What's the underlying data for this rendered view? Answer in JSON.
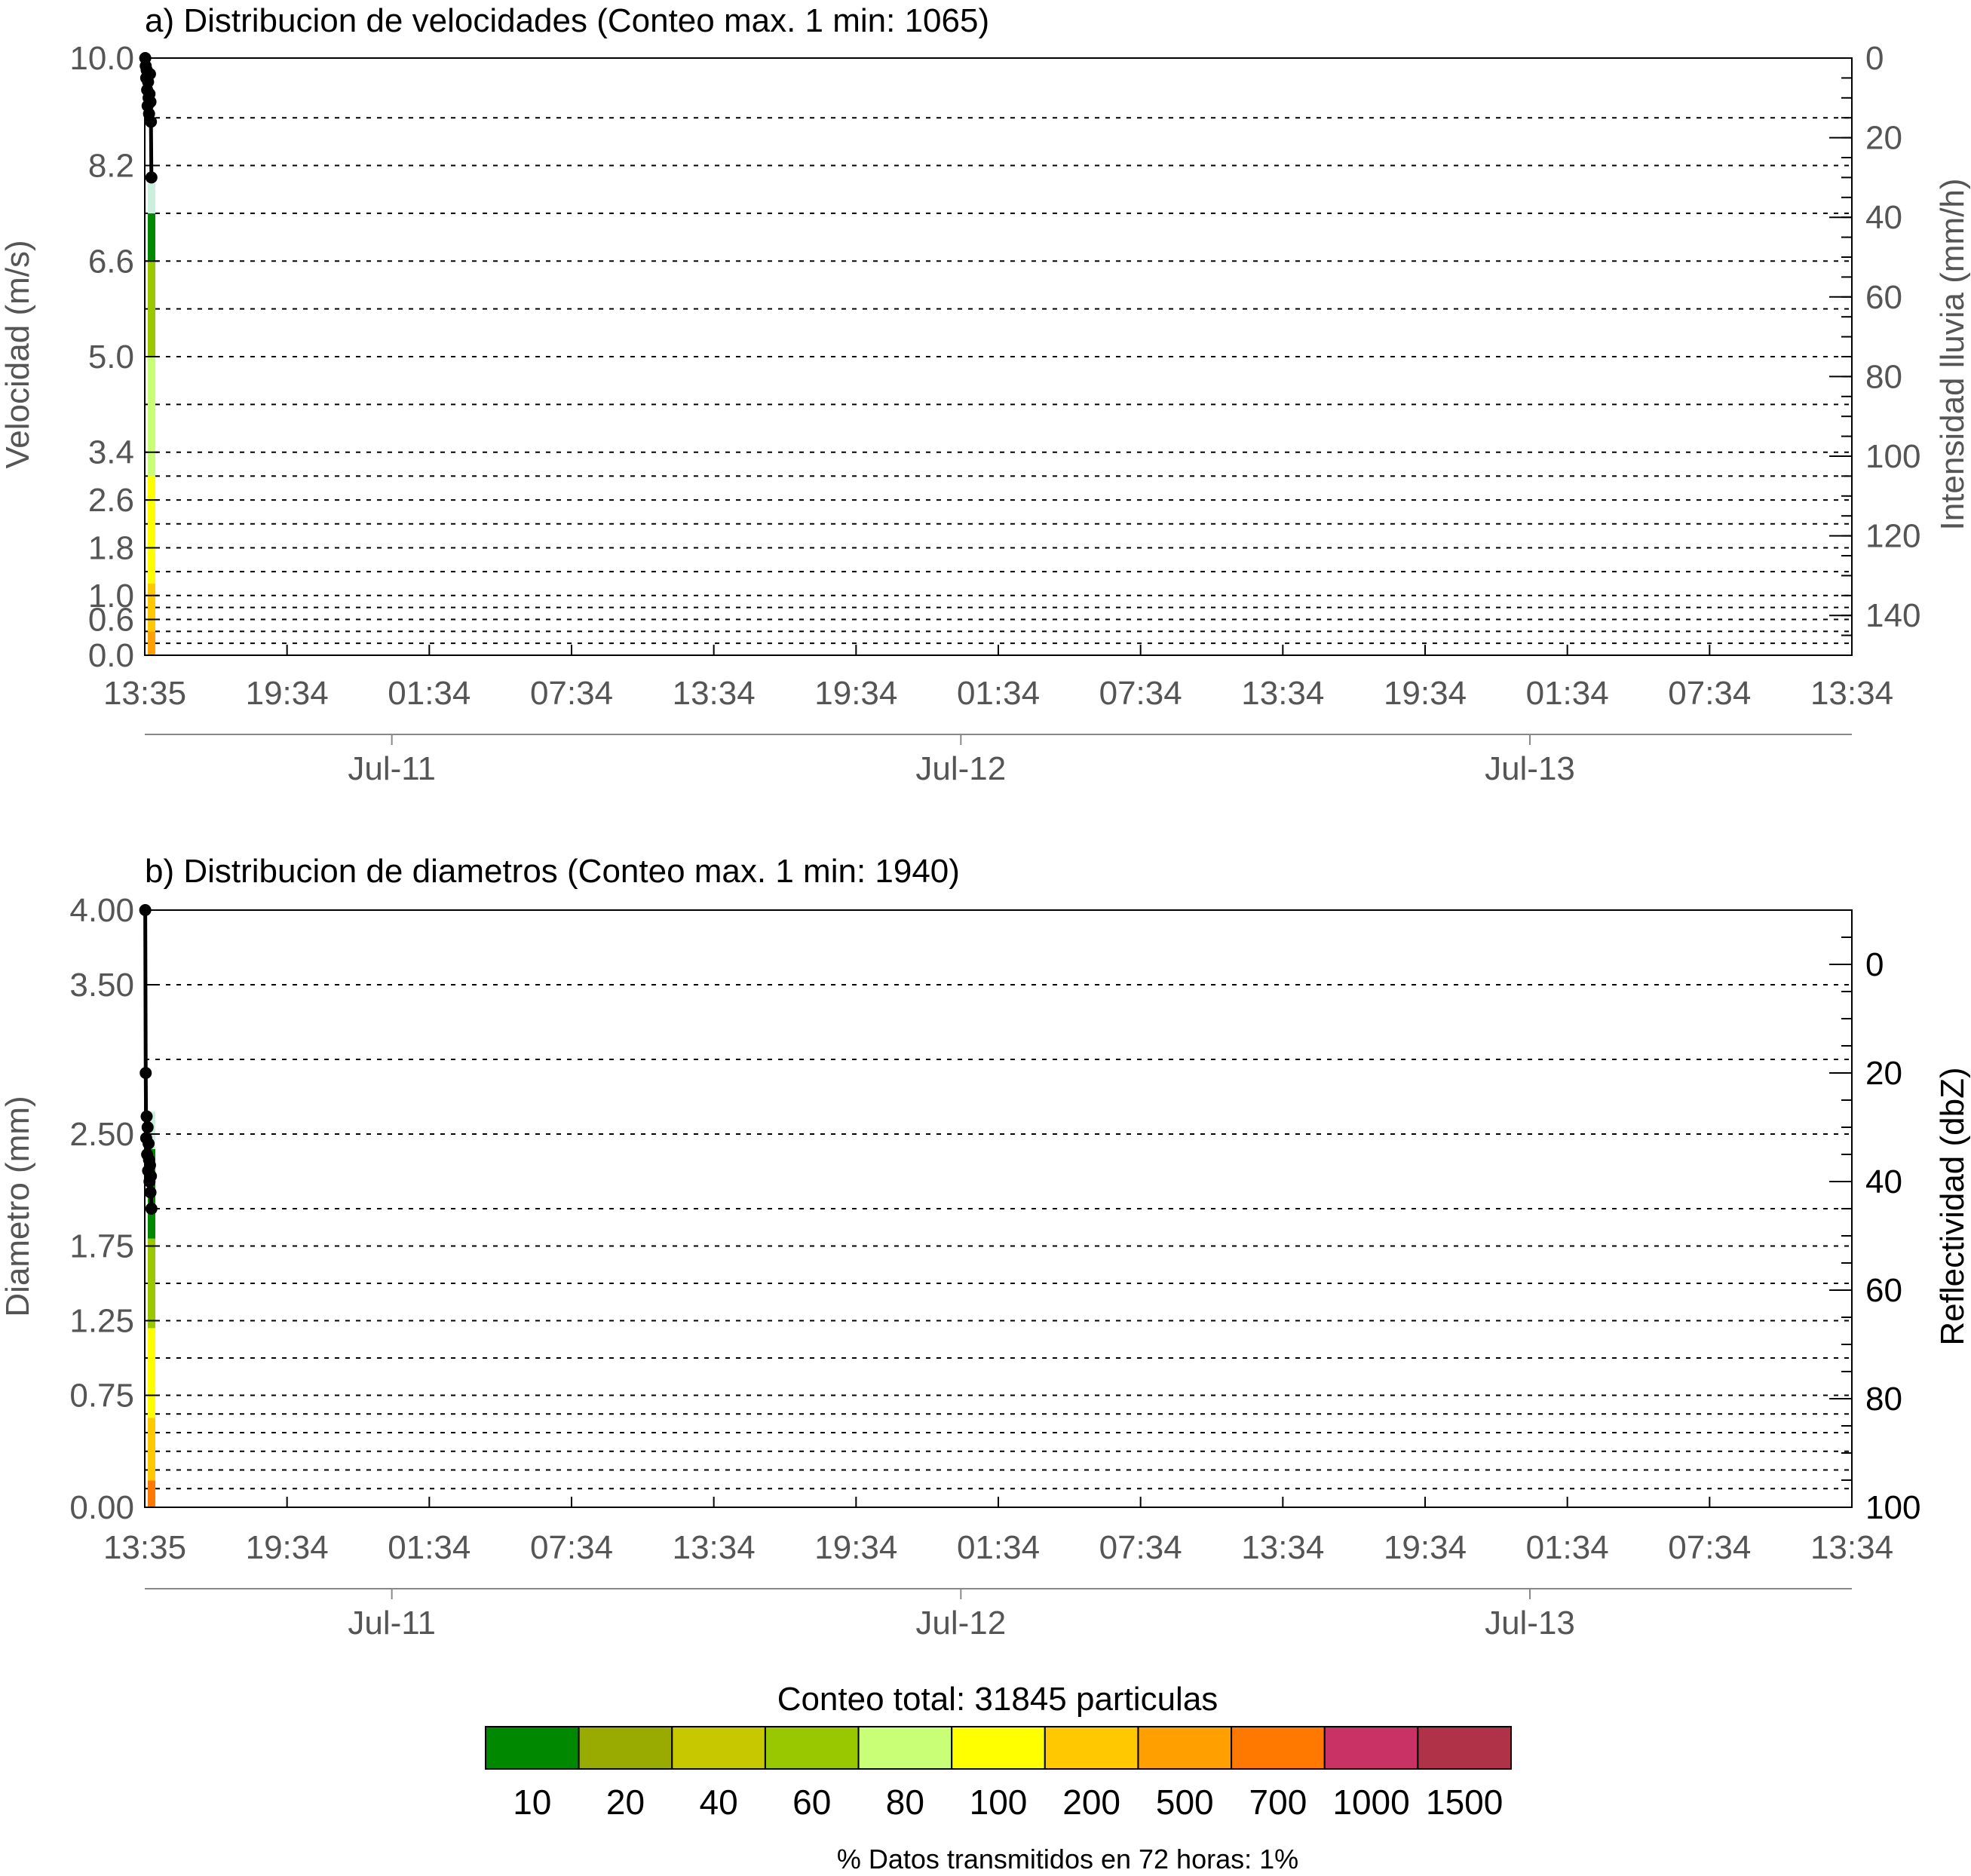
{
  "chart_data": [
    {
      "type": "heatmap",
      "title": "a) Distribucion de velocidades (Conteo max. 1 min: 1065)",
      "ylabel": "Velocidad (m/s)",
      "y2label": "Intensidad lluvia (mm/h)",
      "ylim": [
        0,
        10
      ],
      "y_ticks": [
        "10.0",
        "8.2",
        "6.6",
        "5.0",
        "3.4",
        "2.6",
        "1.8",
        "1.0",
        "0.6",
        "0.0"
      ],
      "y_grid_values": [
        0.0,
        0.2,
        0.4,
        0.6,
        0.8,
        1.0,
        1.4,
        1.8,
        2.2,
        2.6,
        3.0,
        3.4,
        4.2,
        5.0,
        5.8,
        6.6,
        7.4,
        8.2,
        9.0,
        10.0
      ],
      "y2_ticks": [
        "0",
        "20",
        "40",
        "60",
        "80",
        "100",
        "120",
        "140"
      ],
      "y2_lim": [
        0,
        150
      ],
      "x_ticks": [
        "13:35",
        "19:34",
        "01:34",
        "07:34",
        "13:34",
        "19:34",
        "01:34",
        "07:34",
        "13:34",
        "19:34",
        "01:34",
        "07:34",
        "13:34"
      ],
      "x_day_labels": [
        "Jul-11",
        "Jul-12",
        "Jul-13"
      ],
      "x_range_hours": [
        0,
        72
      ],
      "intensity_series": {
        "x_hours": [
          0.02,
          0.04,
          0.06,
          0.08,
          0.1,
          0.12,
          0.14,
          0.16,
          0.18,
          0.2,
          0.22,
          0.24,
          0.26,
          0.28
        ],
        "mm_h": [
          0,
          2,
          5,
          3,
          8,
          12,
          6,
          10,
          14,
          9,
          4,
          11,
          16,
          30
        ]
      }
    },
    {
      "type": "heatmap",
      "title": "b) Distribucion de diametros (Conteo max. 1 min: 1940)",
      "ylabel": "Diametro (mm)",
      "y2label": "Reflectividad (dbZ)",
      "ylim": [
        0,
        4
      ],
      "y_ticks": [
        "4.00",
        "3.50",
        "2.50",
        "1.75",
        "1.25",
        "0.75",
        "0.00"
      ],
      "y_grid_values": [
        0.0,
        0.125,
        0.25,
        0.375,
        0.5,
        0.625,
        0.75,
        1.0,
        1.25,
        1.5,
        1.75,
        2.0,
        2.5,
        3.0,
        3.5,
        4.0
      ],
      "y2_ticks": [
        "0",
        "20",
        "40",
        "60",
        "80",
        "100"
      ],
      "y2_lim": [
        -10,
        100
      ],
      "x_ticks": [
        "13:35",
        "19:34",
        "01:34",
        "07:34",
        "13:34",
        "19:34",
        "01:34",
        "07:34",
        "13:34",
        "19:34",
        "01:34",
        "07:34",
        "13:34"
      ],
      "x_day_labels": [
        "Jul-11",
        "Jul-12",
        "Jul-13"
      ],
      "x_range_hours": [
        0,
        72
      ],
      "reflectivity_series": {
        "x_hours": [
          0.02,
          0.04,
          0.06,
          0.08,
          0.1,
          0.12,
          0.14,
          0.16,
          0.18,
          0.2,
          0.22,
          0.24,
          0.26,
          0.28
        ],
        "dbz": [
          -10,
          20,
          32,
          28,
          35,
          30,
          38,
          33,
          36,
          40,
          37,
          42,
          39,
          45
        ]
      }
    }
  ],
  "colorbar": {
    "title": "Conteo total: 31845 particulas",
    "labels": [
      "10",
      "20",
      "40",
      "60",
      "80",
      "100",
      "200",
      "500",
      "700",
      "1000",
      "1500"
    ],
    "colors": [
      "#008800",
      "#99aa00",
      "#c8c800",
      "#99c800",
      "#c8ff77",
      "#ffff00",
      "#ffc800",
      "#ffa000",
      "#ff7800",
      "#c83264",
      "#b03248"
    ]
  },
  "footer": "% Datos transmitidos en 72 horas: 1%"
}
